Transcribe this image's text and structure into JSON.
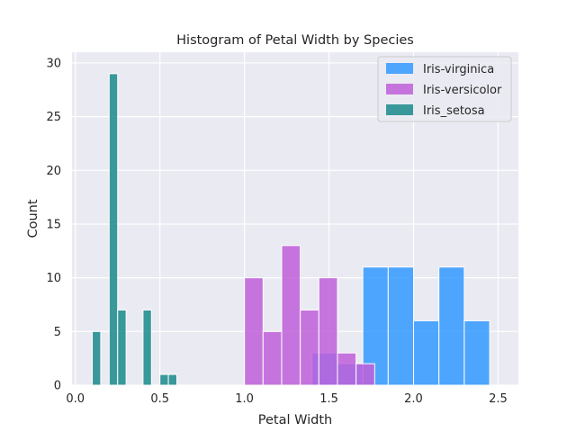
{
  "chart_data": {
    "type": "bar",
    "title": "Histogram of Petal Width by Species",
    "xlabel": "Petal Width",
    "ylabel": "Count",
    "xlim": [
      -0.02,
      2.62
    ],
    "ylim": [
      0,
      31
    ],
    "xticks": [
      0.0,
      0.5,
      1.0,
      1.5,
      2.0,
      2.5
    ],
    "xtick_labels": [
      "0.0",
      "0.5",
      "1.0",
      "1.5",
      "2.0",
      "2.5"
    ],
    "yticks": [
      0,
      5,
      10,
      15,
      20,
      25,
      30
    ],
    "ytick_labels": [
      "0",
      "5",
      "10",
      "15",
      "20",
      "25",
      "30"
    ],
    "grid": true,
    "legend_position": "top-right",
    "series": [
      {
        "name": "Iris-virginica",
        "color": "#3399ff",
        "bins": [
          {
            "x0": 1.4,
            "x1": 1.55,
            "count": 3
          },
          {
            "x0": 1.55,
            "x1": 1.7,
            "count": 2
          },
          {
            "x0": 1.7,
            "x1": 1.85,
            "count": 11
          },
          {
            "x0": 1.85,
            "x1": 2.0,
            "count": 11
          },
          {
            "x0": 2.0,
            "x1": 2.15,
            "count": 6
          },
          {
            "x0": 2.15,
            "x1": 2.3,
            "count": 11
          },
          {
            "x0": 2.3,
            "x1": 2.45,
            "count": 6
          }
        ]
      },
      {
        "name": "Iris-versicolor",
        "color": "#bf5fd9",
        "bins": [
          {
            "x0": 1.0,
            "x1": 1.11,
            "count": 10
          },
          {
            "x0": 1.11,
            "x1": 1.22,
            "count": 5
          },
          {
            "x0": 1.22,
            "x1": 1.33,
            "count": 13
          },
          {
            "x0": 1.33,
            "x1": 1.44,
            "count": 7
          },
          {
            "x0": 1.44,
            "x1": 1.55,
            "count": 10
          },
          {
            "x0": 1.55,
            "x1": 1.66,
            "count": 3
          },
          {
            "x0": 1.66,
            "x1": 1.77,
            "count": 2
          }
        ]
      },
      {
        "name": "Iris_setosa",
        "color": "#1a8a8a",
        "bins": [
          {
            "x0": 0.1,
            "x1": 0.15,
            "count": 5
          },
          {
            "x0": 0.2,
            "x1": 0.25,
            "count": 29
          },
          {
            "x0": 0.25,
            "x1": 0.3,
            "count": 7
          },
          {
            "x0": 0.4,
            "x1": 0.45,
            "count": 7
          },
          {
            "x0": 0.5,
            "x1": 0.55,
            "count": 1
          },
          {
            "x0": 0.55,
            "x1": 0.6,
            "count": 1
          }
        ]
      }
    ]
  }
}
